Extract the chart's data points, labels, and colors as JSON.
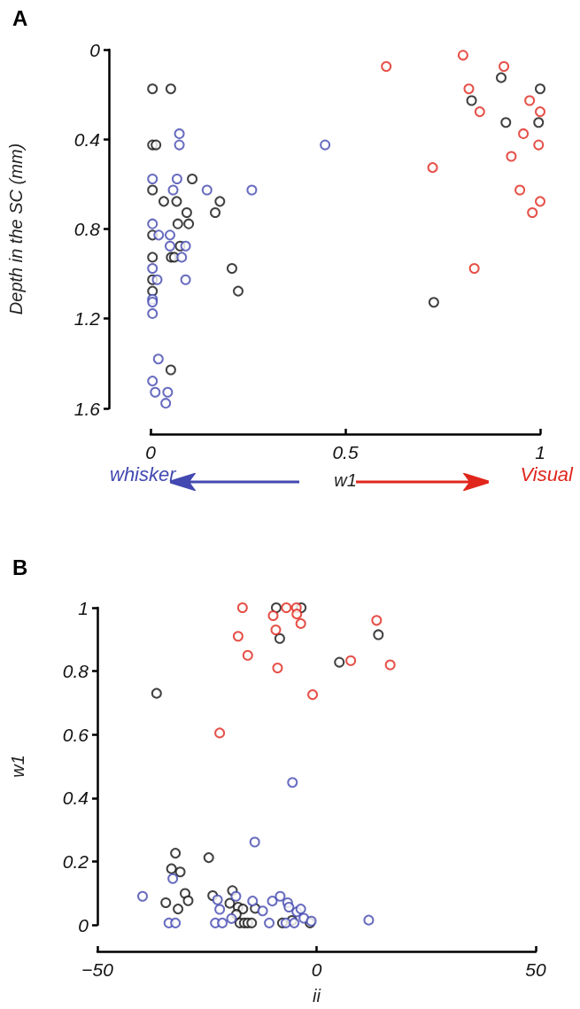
{
  "chart_data": [
    {
      "type": "scatter",
      "title": "A",
      "xlabel": "w1",
      "ylabel": "Depth in the SC (mm)",
      "annotations": [
        "whisker",
        "Visual"
      ],
      "xlim": [
        0,
        1
      ],
      "xticks": [
        0,
        0.5,
        1
      ],
      "ylim": [
        1.6,
        0
      ],
      "yticks": [
        0,
        0.4,
        0.8,
        1.2,
        1.6
      ],
      "marker": "circle",
      "grid": false,
      "series": [
        {
          "color": "#111111",
          "x": [
            0.005,
            0.052,
            0.005,
            0.014,
            0.107,
            0.005,
            0.034,
            0.067,
            0.178,
            0.093,
            0.166,
            0.07,
            0.098,
            0.005,
            0.076,
            0.005,
            0.053,
            0.061,
            0.209,
            0.005,
            0.005,
            0.225,
            0.052,
            0.9,
            1.0,
            0.824,
            0.912,
            0.996,
            0.727
          ],
          "values": [
            0.175,
            0.175,
            0.425,
            0.425,
            0.577,
            0.626,
            0.677,
            0.677,
            0.677,
            0.727,
            0.727,
            0.777,
            0.777,
            0.827,
            0.876,
            0.926,
            0.926,
            0.926,
            0.976,
            1.026,
            1.077,
            1.077,
            1.428,
            0.125,
            0.175,
            0.227,
            0.325,
            0.325,
            1.127
          ]
        },
        {
          "color": "#4349b0",
          "x": [
            0.074,
            0.074,
            0.005,
            0.068,
            0.058,
            0.145,
            0.26,
            0.005,
            0.021,
            0.05,
            0.05,
            0.09,
            0.08,
            0.005,
            0.017,
            0.09,
            0.005,
            0.005,
            0.005,
            0.02,
            0.005,
            0.012,
            0.044,
            0.039,
            0.448
          ],
          "values": [
            0.375,
            0.425,
            0.577,
            0.577,
            0.626,
            0.626,
            0.626,
            0.777,
            0.827,
            0.827,
            0.876,
            0.876,
            0.926,
            0.976,
            1.026,
            1.026,
            1.113,
            1.126,
            1.177,
            1.38,
            1.478,
            1.528,
            1.528,
            1.577,
            0.425
          ]
        },
        {
          "color": "#e0261c",
          "x": [
            0.605,
            0.802,
            0.907,
            0.817,
            0.973,
            0.845,
            1.0,
            0.957,
            0.996,
            0.926,
            0.724,
            0.948,
            1.0,
            0.98,
            0.831
          ],
          "values": [
            0.075,
            0.025,
            0.075,
            0.175,
            0.227,
            0.277,
            0.277,
            0.375,
            0.425,
            0.476,
            0.526,
            0.626,
            0.677,
            0.727,
            0.976
          ]
        }
      ]
    },
    {
      "type": "scatter",
      "title": "B",
      "xlabel": "ii",
      "ylabel": "w1",
      "xlim": [
        -50,
        50
      ],
      "xticks": [
        {
          "value": -50,
          "label": "−50"
        },
        0,
        50
      ],
      "ylim": [
        0,
        1
      ],
      "yticks": [
        0,
        0.2,
        0.4,
        0.6,
        0.8,
        1
      ],
      "marker": "circle",
      "grid": false,
      "series": [
        {
          "color": "#111111",
          "x": [
            -9.2,
            -3.5,
            -8.4,
            14.1,
            5.2,
            -36.5,
            -32.2,
            -33.1,
            -31.1,
            -24.6,
            -30.0,
            -34.4,
            -29.3,
            -31.6,
            -23.7,
            -19.2,
            -19.8,
            -17.9,
            -16.8,
            -18.3,
            -14.0,
            -17.5,
            -16.5,
            -15.7,
            -14.8,
            -7.8,
            -5.6,
            -1.5
          ],
          "values": [
            1.0,
            1.0,
            0.903,
            0.915,
            0.828,
            0.73,
            0.226,
            0.177,
            0.167,
            0.212,
            0.099,
            0.07,
            0.076,
            0.05,
            0.092,
            0.108,
            0.068,
            0.056,
            0.05,
            0.033,
            0.052,
            0.006,
            0.006,
            0.006,
            0.006,
            0.006,
            0.014,
            0.006
          ]
        },
        {
          "color": "#4349b0",
          "x": [
            -5.5,
            -14.1,
            -32.8,
            -39.7,
            -22.6,
            -22.1,
            -18.4,
            -19.4,
            -14.6,
            -12.3,
            -10.1,
            -8.3,
            -6.6,
            -6.3,
            -4.5,
            -3.6,
            -2.9,
            -1.2,
            -33.7,
            -32.2,
            -23.1,
            -21.5,
            -10.8,
            -7.0,
            -5.1,
            11.9
          ],
          "values": [
            0.449,
            0.261,
            0.146,
            0.09,
            0.079,
            0.049,
            0.09,
            0.02,
            0.075,
            0.044,
            0.075,
            0.09,
            0.07,
            0.056,
            0.041,
            0.05,
            0.021,
            0.012,
            0.006,
            0.006,
            0.006,
            0.006,
            0.006,
            0.006,
            0.006,
            0.015
          ]
        },
        {
          "color": "#e0261c",
          "x": [
            -16.9,
            -6.9,
            -4.6,
            -4.5,
            -9.9,
            -3.6,
            13.7,
            -9.3,
            -17.9,
            -15.7,
            -8.9,
            7.8,
            16.8,
            -0.9,
            -22.1
          ],
          "values": [
            1.0,
            1.0,
            1.0,
            0.98,
            0.975,
            0.95,
            0.96,
            0.93,
            0.91,
            0.85,
            0.81,
            0.833,
            0.82,
            0.726,
            0.605
          ]
        }
      ]
    }
  ]
}
